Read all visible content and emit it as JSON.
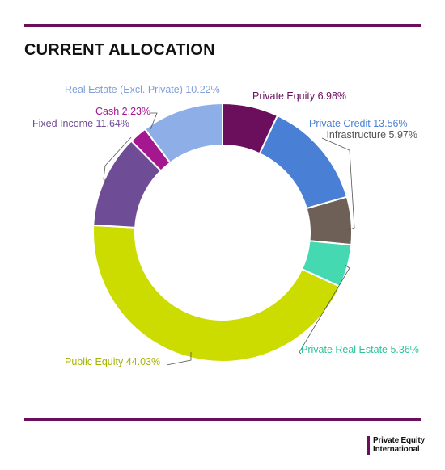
{
  "header": {
    "title": "CURRENT ALLOCATION"
  },
  "brand": {
    "line1": "Private Equity",
    "line2": "International"
  },
  "chart_data": {
    "type": "pie",
    "title": "CURRENT ALLOCATION",
    "donut": true,
    "labels_on_chart": true,
    "slices": [
      {
        "name": "Private Equity",
        "value": 6.98,
        "label": "Private Equity 6.98%",
        "color": "#6b0f5c",
        "label_color": "#6b0f5c"
      },
      {
        "name": "Private Credit",
        "value": 13.56,
        "label": "Private Credit 13.56%",
        "color": "#4a7fd6",
        "label_color": "#4a7fd6"
      },
      {
        "name": "Infrastructure",
        "value": 5.97,
        "label": "Infrastructure 5.97%",
        "color": "#6e5f57",
        "label_color": "#555555"
      },
      {
        "name": "Private Real Estate",
        "value": 5.36,
        "label": "Private Real Estate 5.36%",
        "color": "#44d9b0",
        "label_color": "#2fc49c"
      },
      {
        "name": "Public Equity",
        "value": 44.03,
        "label": "Public Equity 44.03%",
        "color": "#cddc00",
        "label_color": "#a7b500"
      },
      {
        "name": "Fixed Income",
        "value": 11.64,
        "label": "Fixed Income 11.64%",
        "color": "#6f4d96",
        "label_color": "#6f4d96"
      },
      {
        "name": "Cash",
        "value": 2.23,
        "label": "Cash 2.23%",
        "color": "#a4178f",
        "label_color": "#a4178f"
      },
      {
        "name": "Real Estate (Excl. Private)",
        "value": 10.22,
        "label": "Real Estate (Excl. Private) 10.22%",
        "color": "#8daee6",
        "label_color": "#7f9fd8"
      }
    ]
  }
}
